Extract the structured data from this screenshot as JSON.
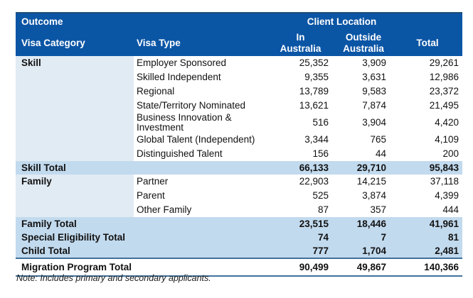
{
  "colors": {
    "header-blue": "#0B55A5",
    "header-top-border": "#1F4E79",
    "cat-band": "#E1EBF4",
    "total-band": "#C2DAEE",
    "rule-blue": "#41719C"
  },
  "header": {
    "outcome": "Outcome",
    "client_location": "Client Location",
    "visa_category": "Visa Category",
    "visa_type": "Visa Type",
    "in_australia": "In Australia",
    "outside_australia": "Outside Australia",
    "total": "Total"
  },
  "skill": {
    "category": "Skill",
    "rows": [
      {
        "type": "Employer Sponsored",
        "in": "25,352",
        "out": "3,909",
        "total": "29,261"
      },
      {
        "type": "Skilled Independent",
        "in": "9,355",
        "out": "3,631",
        "total": "12,986"
      },
      {
        "type": "Regional",
        "in": "13,789",
        "out": "9,583",
        "total": "23,372"
      },
      {
        "type": "State/Territory Nominated",
        "in": "13,621",
        "out": "7,874",
        "total": "21,495"
      },
      {
        "type": "Business Innovation & Investment",
        "in": "516",
        "out": "3,904",
        "total": "4,420"
      },
      {
        "type": "Global Talent (Independent)",
        "in": "3,344",
        "out": "765",
        "total": "4,109"
      },
      {
        "type": "Distinguished Talent",
        "in": "156",
        "out": "44",
        "total": "200"
      }
    ],
    "total": {
      "label": "Skill Total",
      "in": "66,133",
      "out": "29,710",
      "total": "95,843"
    }
  },
  "family": {
    "category": "Family",
    "rows": [
      {
        "type": "Partner",
        "in": "22,903",
        "out": "14,215",
        "total": "37,118"
      },
      {
        "type": "Parent",
        "in": "525",
        "out": "3,874",
        "total": "4,399"
      },
      {
        "type": "Other Family",
        "in": "87",
        "out": "357",
        "total": "444"
      }
    ],
    "total": {
      "label": "Family Total",
      "in": "23,515",
      "out": "18,446",
      "total": "41,961"
    }
  },
  "special_total": {
    "label": "Special Eligibility Total",
    "in": "74",
    "out": "7",
    "total": "81"
  },
  "child_total": {
    "label": "Child Total",
    "in": "777",
    "out": "1,704",
    "total": "2,481"
  },
  "program_total": {
    "label": "Migration Program Total",
    "in": "90,499",
    "out": "49,867",
    "total": "140,366"
  },
  "note": "Note: Includes primary and secondary applicants."
}
